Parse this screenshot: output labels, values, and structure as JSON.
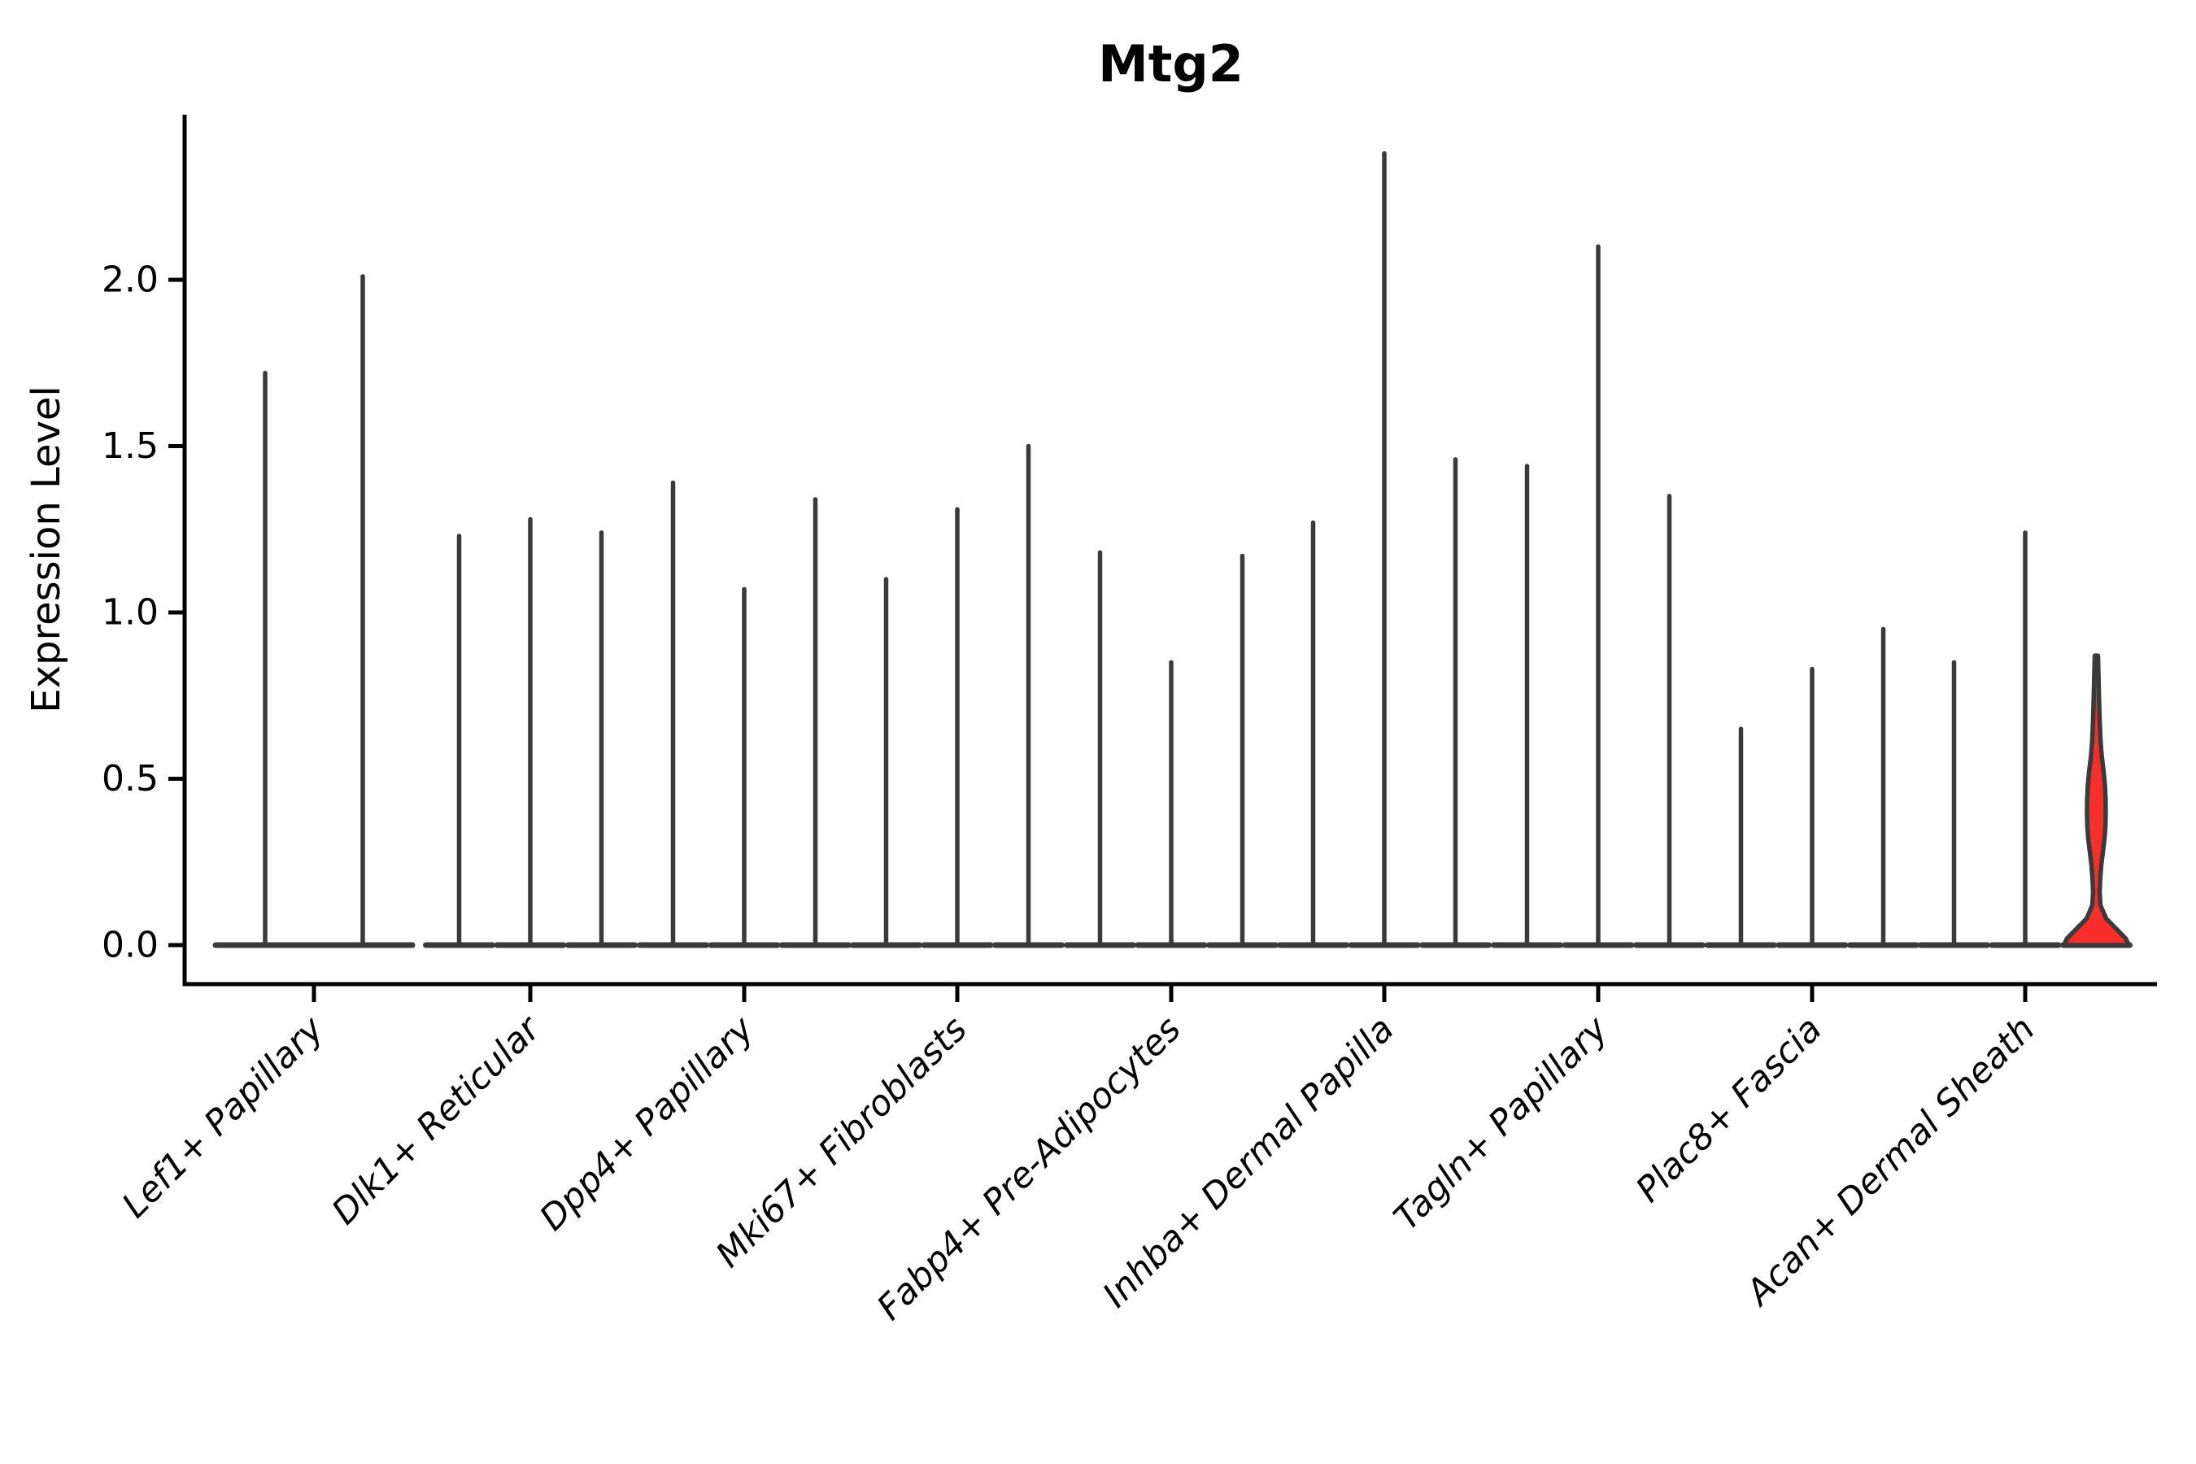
{
  "chart_data": {
    "type": "violin",
    "title": "Mtg2",
    "ylabel": "Expression Level",
    "xlabel": "",
    "ylim": [
      -0.12,
      2.5
    ],
    "grid": false,
    "legend": "none",
    "yticks": [
      0.0,
      0.5,
      1.0,
      1.5,
      2.0
    ],
    "ytick_labels": [
      "0.0",
      "0.5",
      "1.0",
      "1.5",
      "2.0"
    ],
    "categories": [
      "Lef1+ Papillary",
      "Dlk1+ Reticular",
      "Dpp4+ Papillary",
      "Mki67+ Fibroblasts",
      "Fabp4+ Pre-Adipocytes",
      "Inhba+ Dermal Papilla",
      "Tagln+ Papillary",
      "Plac8+ Fascia",
      "Acan+ Dermal Sheath"
    ],
    "series_description": "Each category shows 2-3 needle-thin violins (one per sample); value listed is the max expression reached by each violin's spike; nearly all density mass sits at 0 so violins collapse to a flat base line plus a thin spike.",
    "violin_max_values": [
      [
        1.72,
        2.01
      ],
      [
        1.23,
        1.28,
        1.24
      ],
      [
        1.39,
        1.07,
        1.34
      ],
      [
        1.1,
        1.31,
        1.5
      ],
      [
        1.18,
        0.85,
        1.17
      ],
      [
        1.27,
        2.38,
        1.46
      ],
      [
        1.44,
        2.1,
        1.35
      ],
      [
        0.65,
        0.83,
        0.95
      ],
      [
        0.85,
        1.24,
        0.87
      ]
    ],
    "highlighted_violin": {
      "category": "Acan+ Dermal Sheath",
      "violin_index": 2,
      "max": 0.87,
      "fill": "#F92E2B",
      "note": "only violin with visible density bulge (centered near 0.35-0.45) and wide filled base at 0",
      "profile_value_halfwidth": [
        [
          0.87,
          2.0
        ],
        [
          0.82,
          2.5
        ],
        [
          0.75,
          3.2
        ],
        [
          0.68,
          4.0
        ],
        [
          0.62,
          5.0
        ],
        [
          0.57,
          6.5
        ],
        [
          0.52,
          9.0
        ],
        [
          0.48,
          10.5
        ],
        [
          0.44,
          11.3
        ],
        [
          0.4,
          11.5
        ],
        [
          0.36,
          11.2
        ],
        [
          0.32,
          10.0
        ],
        [
          0.28,
          8.0
        ],
        [
          0.24,
          6.0
        ],
        [
          0.2,
          4.8
        ],
        [
          0.16,
          4.0
        ],
        [
          0.12,
          5.0
        ],
        [
          0.08,
          12.0
        ],
        [
          0.05,
          24.0
        ],
        [
          0.02,
          36.0
        ],
        [
          0.0,
          40.0
        ]
      ]
    },
    "colors": {
      "violin_line": "#3A3A3A",
      "axis": "#000000",
      "text": "#000000",
      "highlight_fill": "#F92E2B",
      "background": "#FFFFFF"
    }
  }
}
